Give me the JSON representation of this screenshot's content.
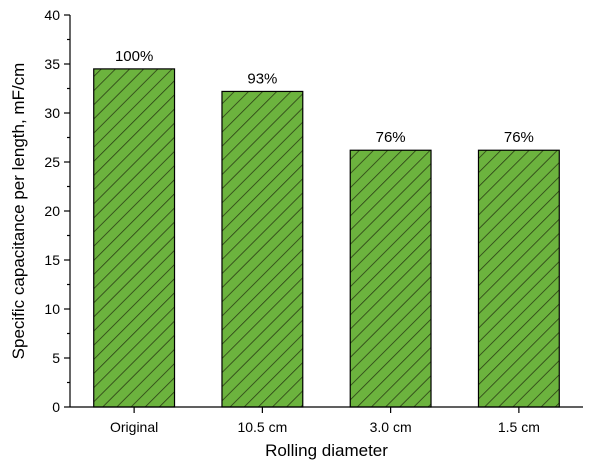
{
  "chart_data": {
    "type": "bar",
    "categories": [
      "Original",
      "10.5 cm",
      "3.0 cm",
      "1.5 cm"
    ],
    "values": [
      34.5,
      32.2,
      26.2,
      26.2
    ],
    "data_labels": [
      "100%",
      "93%",
      "76%",
      "76%"
    ],
    "xlabel": "Rolling diameter",
    "ylabel": "Specific capacitance per length, mF/cm",
    "ylim": [
      0,
      40
    ],
    "yticks": [
      0,
      5,
      10,
      15,
      20,
      25,
      30,
      35,
      40
    ],
    "grid": false,
    "legend": "none",
    "bar_color": "#6cb33e",
    "hatch_color": "#2a3d14",
    "hatch": "diagonal"
  }
}
